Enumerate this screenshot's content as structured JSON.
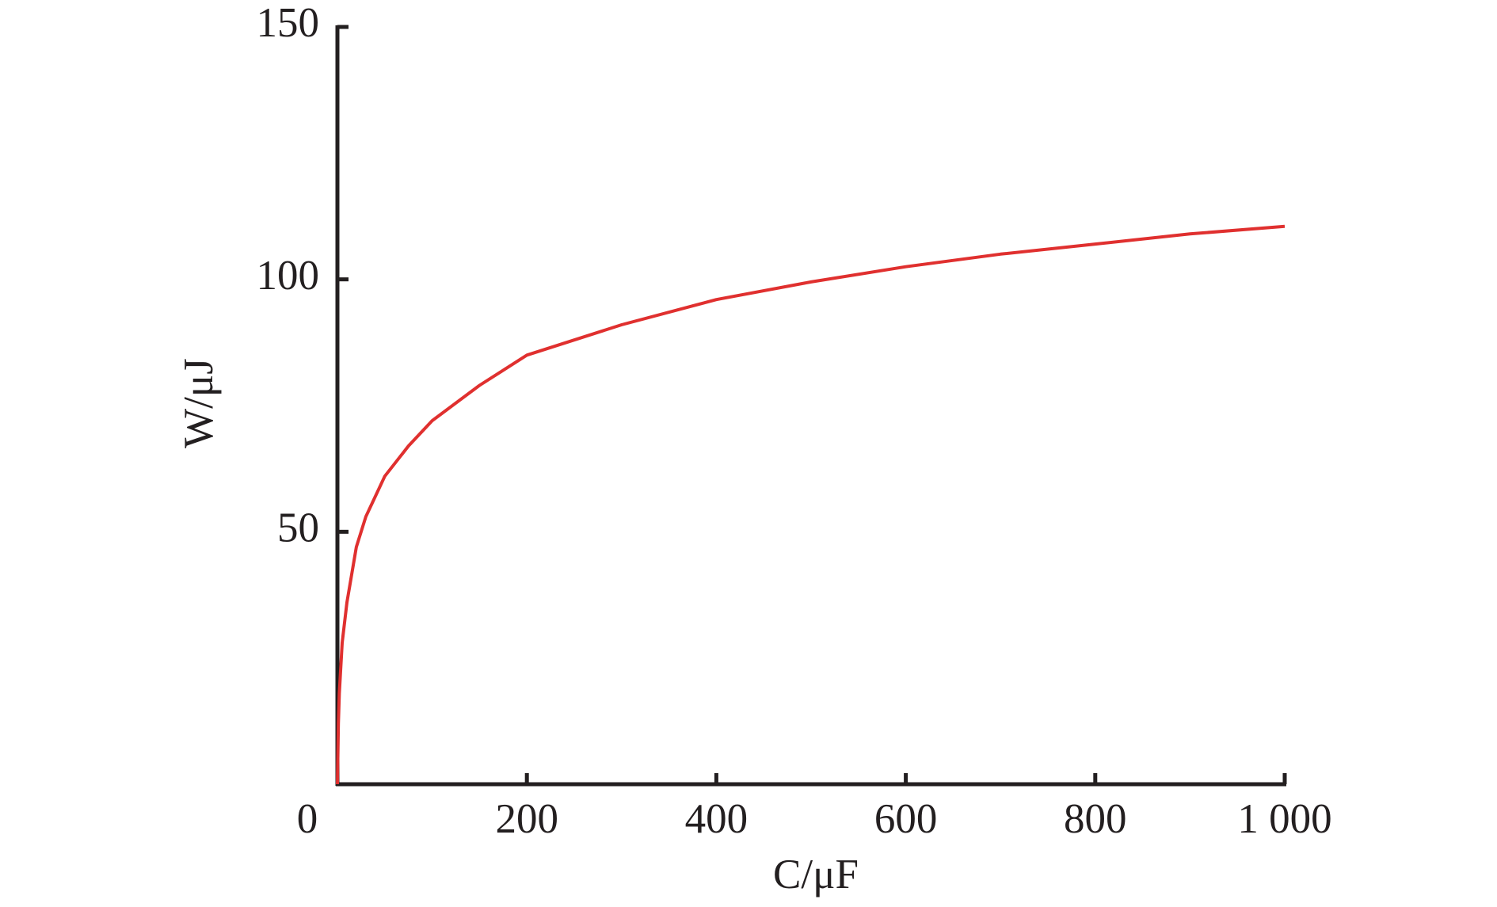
{
  "chart_data": {
    "type": "line",
    "x_label": "C/μF",
    "y_label": "W/μJ",
    "x": [
      0,
      1,
      2,
      5,
      10,
      20,
      30,
      50,
      75,
      100,
      150,
      200,
      300,
      400,
      500,
      600,
      700,
      800,
      900,
      1000
    ],
    "series": [
      {
        "color": "#e0302f",
        "values": [
          0,
          12,
          18,
          28,
          36,
          47,
          53,
          61,
          67,
          72,
          79,
          85,
          91,
          96,
          99.5,
          102.5,
          105,
          107,
          109,
          110.5
        ]
      }
    ],
    "xlim": [
      0,
      1000
    ],
    "ylim": [
      0,
      150
    ],
    "xticks": [
      0,
      200,
      400,
      600,
      800,
      {
        "value": 1000,
        "label": "1 000"
      }
    ],
    "yticks": [
      50,
      100,
      150
    ]
  }
}
